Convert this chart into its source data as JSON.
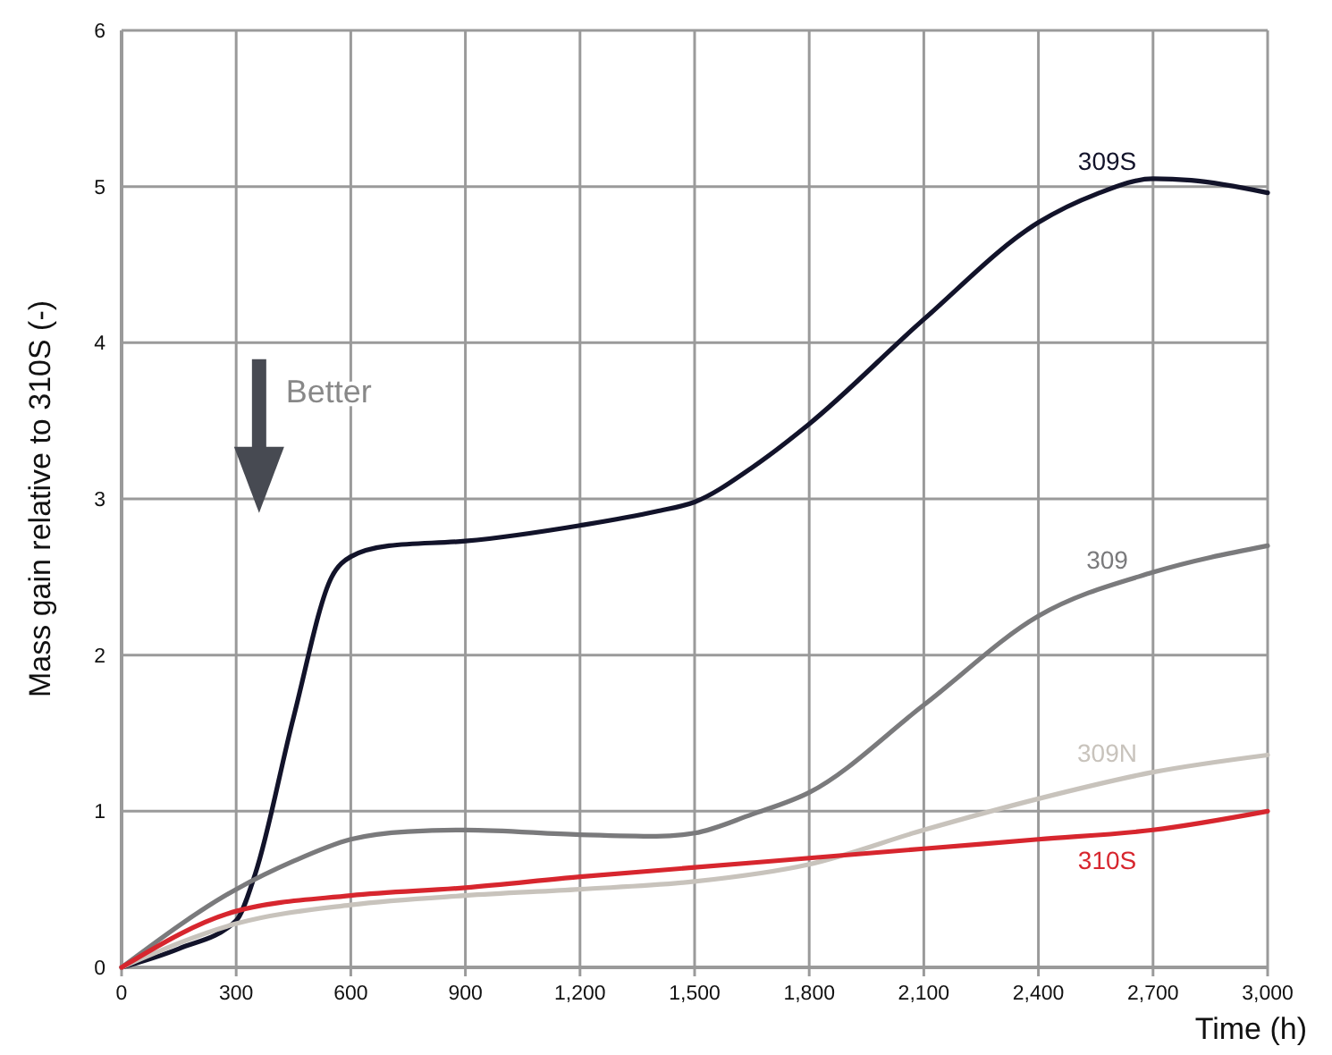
{
  "chart_data": {
    "type": "line",
    "xlabel": "Time (h)",
    "ylabel": "Mass gain relative to 310S (-)",
    "xlim": [
      0,
      3000
    ],
    "ylim": [
      0,
      6
    ],
    "xticks": [
      0,
      300,
      600,
      900,
      {
        "value": 1200,
        "label": "1,200"
      },
      {
        "value": 1500,
        "label": "1,500"
      },
      {
        "value": 1800,
        "label": "1,800"
      },
      {
        "value": 2100,
        "label": "2,100"
      },
      {
        "value": 2400,
        "label": "2,400"
      },
      {
        "value": 2700,
        "label": "2,700"
      },
      {
        "value": 3000,
        "label": "3,000"
      }
    ],
    "yticks": [
      0,
      1,
      2,
      3,
      4,
      5,
      6
    ],
    "grid": true,
    "marker": "none",
    "line_style": "solid",
    "annotations": [
      "Better"
    ],
    "series": [
      {
        "name": "309S",
        "color": "#12132a",
        "x": [
          0,
          150,
          300,
          350,
          450,
          550,
          600,
          700,
          900,
          1200,
          1400,
          1500,
          1650,
          1800,
          2100,
          2400,
          2550,
          2700,
          2800,
          3000
        ],
        "values": [
          0,
          0.12,
          0.3,
          0.6,
          1.6,
          2.5,
          2.63,
          2.7,
          2.73,
          2.83,
          2.92,
          2.98,
          3.2,
          3.48,
          4.15,
          4.77,
          4.95,
          5.05,
          5.04,
          4.96
        ]
      },
      {
        "name": "309",
        "color": "#7a7a7c",
        "x": [
          0,
          300,
          450,
          600,
          750,
          900,
          1200,
          1400,
          1500,
          1650,
          1800,
          2100,
          2400,
          2700,
          3000
        ],
        "values": [
          0,
          0.5,
          0.68,
          0.82,
          0.87,
          0.88,
          0.85,
          0.84,
          0.86,
          0.98,
          1.12,
          1.68,
          2.25,
          2.53,
          2.7
        ]
      },
      {
        "name": "309N",
        "color": "#c8c3bc",
        "x": [
          0,
          300,
          600,
          900,
          1200,
          1500,
          1800,
          2100,
          2400,
          2700,
          3000
        ],
        "values": [
          0,
          0.28,
          0.4,
          0.46,
          0.5,
          0.55,
          0.66,
          0.88,
          1.08,
          1.25,
          1.36
        ]
      },
      {
        "name": "310S",
        "color": "#d7262e",
        "x": [
          0,
          300,
          600,
          900,
          1200,
          1500,
          1800,
          2100,
          2400,
          2700,
          3000
        ],
        "values": [
          0,
          0.36,
          0.46,
          0.51,
          0.58,
          0.64,
          0.7,
          0.76,
          0.82,
          0.88,
          1.0
        ]
      }
    ]
  }
}
